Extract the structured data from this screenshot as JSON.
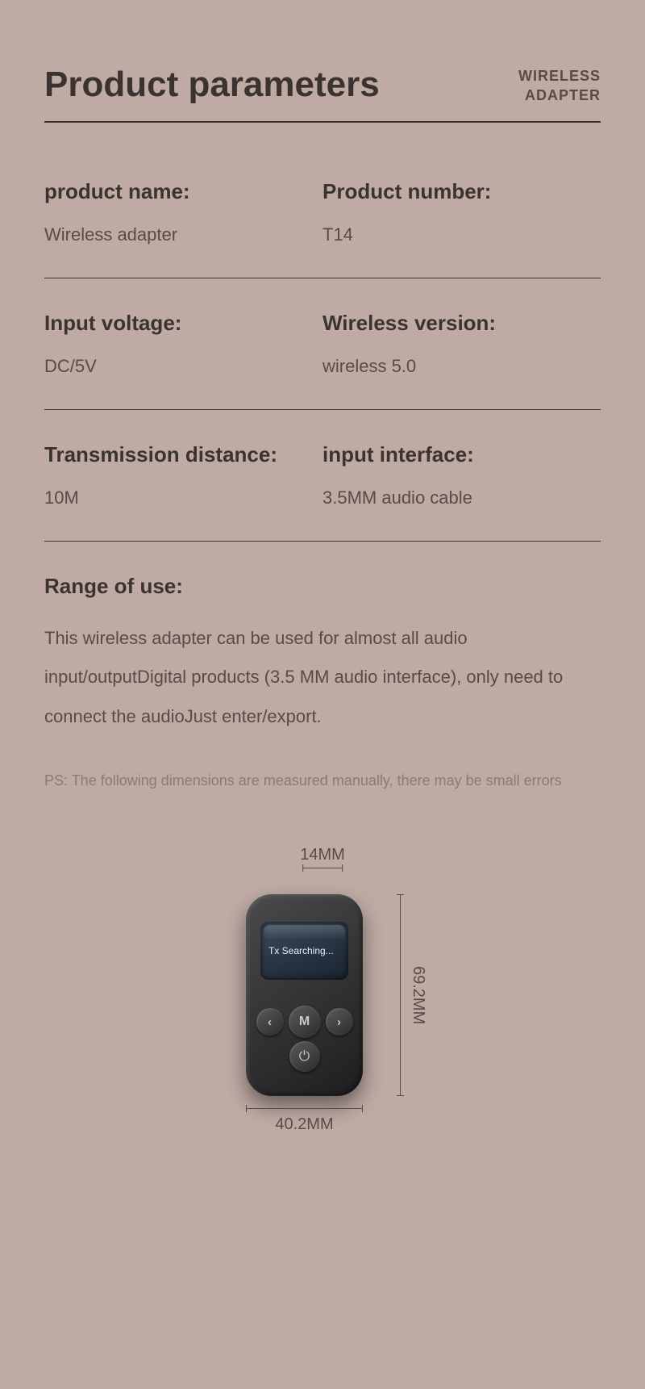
{
  "header": {
    "title": "Product parameters",
    "badge_line1": "WIRELESS",
    "badge_line2": "ADAPTER"
  },
  "specs": [
    {
      "left_label": "product name:",
      "left_value": "Wireless adapter",
      "right_label": "Product number:",
      "right_value": "T14"
    },
    {
      "left_label": "Input voltage:",
      "left_value": "DC/5V",
      "right_label": "Wireless version:",
      "right_value": "wireless 5.0"
    },
    {
      "left_label": "Transmission distance:",
      "left_value": "10M",
      "right_label": "input interface:",
      "right_value": "3.5MM audio cable"
    }
  ],
  "range": {
    "label": "Range of use:",
    "text": "This wireless adapter can be used for almost all audio input/outputDigital products (3.5 MM audio interface), only need to connect the audioJust enter/export."
  },
  "ps_note": "PS: The following dimensions are measured manually, there may be small errors",
  "dimensions": {
    "top": "14MM",
    "right": "69.2MM",
    "bottom": "40.2MM"
  },
  "device": {
    "screen_text": "Tx Searching...",
    "btn_prev": "‹",
    "btn_m": "M",
    "btn_next": "›",
    "btn_power": "⏻"
  },
  "colors": {
    "background": "#bfaaa4",
    "text_primary": "#3a3330",
    "text_secondary": "#5a4b46",
    "text_muted": "#8a7b76"
  }
}
